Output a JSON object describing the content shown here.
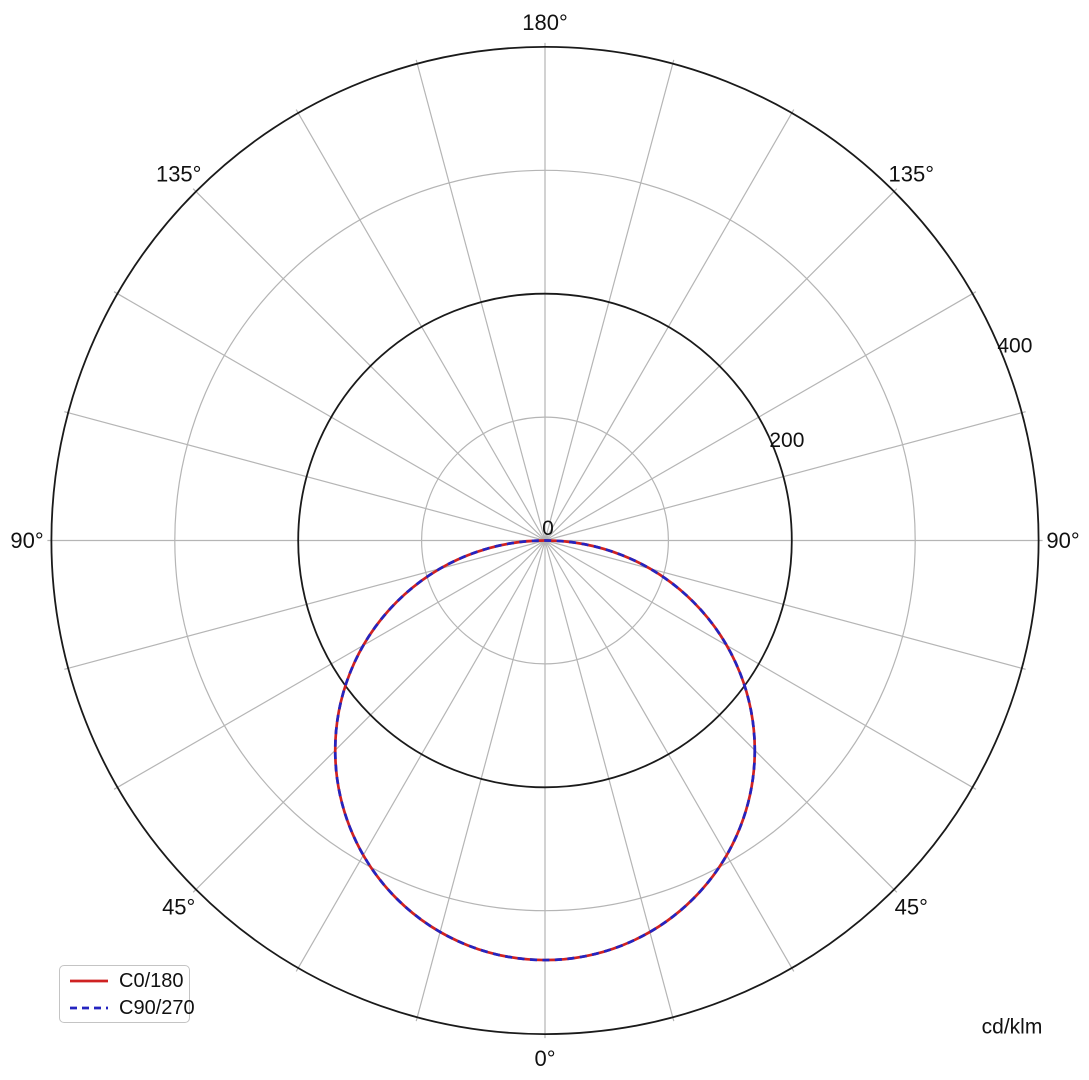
{
  "page": {
    "background": "#ffffff"
  },
  "unit_label": "cd/klm",
  "legend": {
    "items": [
      {
        "label": "C0/180",
        "color": "#cf2222",
        "style": "solid"
      },
      {
        "label": "C90/270",
        "color": "#2424c0",
        "style": "dashed"
      }
    ]
  },
  "colors": {
    "grid_minor": "#b5b5b5",
    "grid_major": "#1a1a1a",
    "text": "#111111"
  },
  "chart_data": {
    "type": "polar",
    "subtype": "photometric_luminous_intensity_distribution",
    "units": "cd/klm",
    "title": "",
    "zero_gamma_position": "bottom",
    "angle_axis": {
      "labeled_angles_deg": [
        0,
        45,
        90,
        135,
        180
      ],
      "labels": [
        "0°",
        "45°",
        "90°",
        "135°",
        "180°"
      ],
      "gridline_step_deg": 15,
      "mirrored_left_right": true
    },
    "radial_axis": {
      "ticks": [
        0,
        100,
        200,
        300,
        400
      ],
      "labeled_ticks": [
        0,
        200,
        400
      ],
      "major_circles": [
        200,
        400
      ],
      "minor_circles": [
        100,
        300
      ],
      "max": 400,
      "label_direction_deg_from_vertical": 67.5
    },
    "legend_position": "bottom-left",
    "series": [
      {
        "name": "C0/180",
        "color": "#cf2222",
        "line_style": "solid",
        "distribution": "cosine",
        "peak_cd_per_klm": 340,
        "gamma_deg": [
          0,
          15,
          30,
          45,
          60,
          75,
          90,
          105,
          120,
          135,
          150,
          165,
          180
        ],
        "intensity_cd_per_klm": [
          340,
          328,
          294,
          240,
          170,
          88,
          0,
          0,
          0,
          0,
          0,
          0,
          0
        ]
      },
      {
        "name": "C90/270",
        "color": "#2424c0",
        "line_style": "dashed",
        "distribution": "cosine",
        "peak_cd_per_klm": 340,
        "gamma_deg": [
          0,
          15,
          30,
          45,
          60,
          75,
          90,
          105,
          120,
          135,
          150,
          165,
          180
        ],
        "intensity_cd_per_klm": [
          340,
          328,
          294,
          240,
          170,
          88,
          0,
          0,
          0,
          0,
          0,
          0,
          0
        ]
      }
    ]
  }
}
